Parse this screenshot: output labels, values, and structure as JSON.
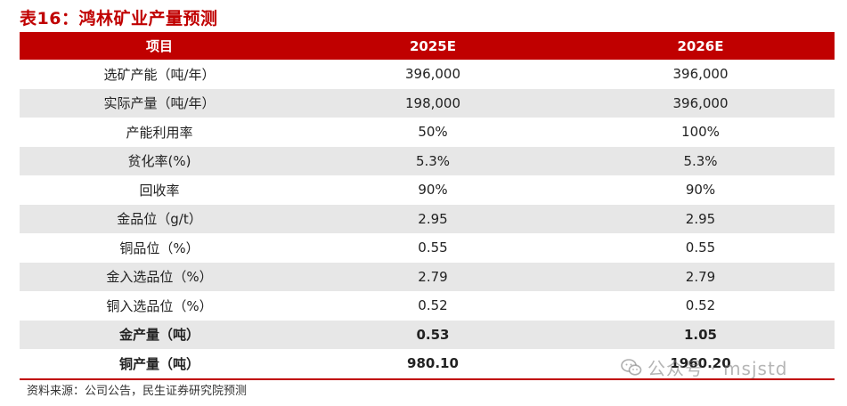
{
  "title": "表16：鸿林矿业产量预测",
  "header": [
    "项目",
    "2025E",
    "2026E"
  ],
  "rows": [
    {
      "label": "选矿产能（吨/年）",
      "v2025": "396,000",
      "v2026": "396,000"
    },
    {
      "label": "实际产量（吨/年）",
      "v2025": "198,000",
      "v2026": "396,000"
    },
    {
      "label": "产能利用率",
      "v2025": "50%",
      "v2026": "100%"
    },
    {
      "label": "贫化率(%)",
      "v2025": "5.3%",
      "v2026": "5.3%"
    },
    {
      "label": "回收率",
      "v2025": "90%",
      "v2026": "90%"
    },
    {
      "label": "金品位（g/t）",
      "v2025": "2.95",
      "v2026": "2.95"
    },
    {
      "label": "铜品位（%）",
      "v2025": "0.55",
      "v2026": "0.55"
    },
    {
      "label": "金入选品位（%）",
      "v2025": "2.79",
      "v2026": "2.79"
    },
    {
      "label": "铜入选品位（%）",
      "v2025": "0.52",
      "v2026": "0.52"
    },
    {
      "label": "金产量（吨）",
      "v2025": "0.53",
      "v2026": "1.05"
    },
    {
      "label": "铜产量（吨）",
      "v2025": "980.10",
      "v2026": "1960.20"
    }
  ],
  "source": "资料来源：公司公告，民生证券研究院预测",
  "watermark": {
    "icon": "wechat-icon",
    "text": "公众号 · msjstd"
  },
  "colors": {
    "accent": "#c00000",
    "shade": "#e7e7e7"
  }
}
